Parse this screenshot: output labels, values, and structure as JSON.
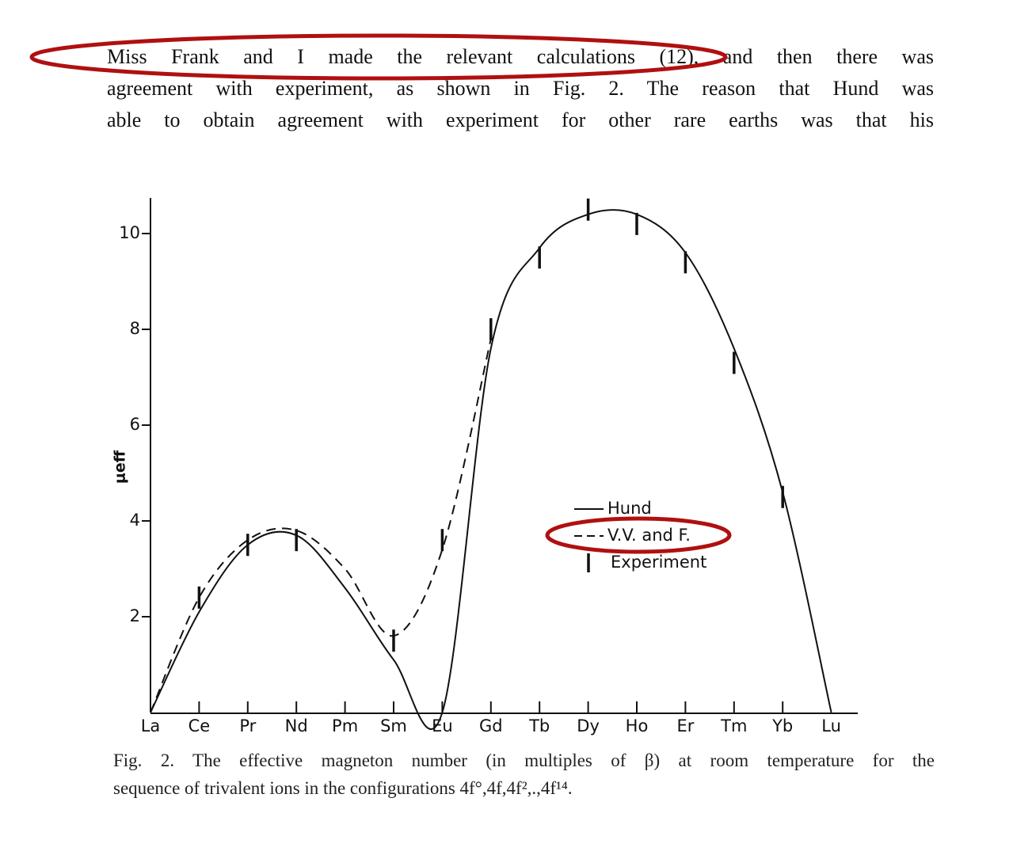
{
  "text": {
    "lines": [
      "Miss Frank and I made the relevant calculations (12), and then there was",
      "agreement with experiment, as shown in Fig. 2. The reason that Hund was",
      "able to obtain agreement with experiment for other rare earths was that his"
    ]
  },
  "chart_data": {
    "type": "line",
    "ylabel": "μeff",
    "categories": [
      "La",
      "Ce",
      "Pr",
      "Nd",
      "Pm",
      "Sm",
      "Eu",
      "Gd",
      "Tb",
      "Dy",
      "Ho",
      "Er",
      "Tm",
      "Yb",
      "Lu"
    ],
    "series": [
      {
        "name": "Hund",
        "color": "#111111",
        "style": "solid",
        "values": [
          0,
          2.1,
          3.5,
          3.7,
          2.6,
          1.1,
          0,
          7.6,
          9.7,
          10.4,
          10.4,
          9.6,
          7.6,
          4.6,
          0
        ]
      },
      {
        "name": "V.V. and F.",
        "color": "#111111",
        "style": "dashed",
        "values": [
          0,
          2.4,
          3.6,
          3.8,
          3.0,
          1.6,
          3.4,
          7.8,
          null,
          null,
          null,
          null,
          null,
          null,
          null
        ]
      },
      {
        "name": "Experiment",
        "color": "#111111",
        "style": "bar",
        "values": [
          null,
          2.4,
          3.5,
          3.6,
          null,
          1.5,
          3.6,
          8.0,
          9.5,
          10.5,
          10.2,
          9.4,
          7.3,
          4.5,
          null
        ]
      }
    ],
    "ylim": [
      0,
      10.7
    ],
    "yticks": [
      2,
      4,
      6,
      8,
      10
    ]
  },
  "caption": {
    "lines": [
      "Fig. 2. The effective magneton number (in multiples of β) at room temperature for the",
      "sequence of trivalent ions in the configurations 4f°,4f,4f²,.,4f¹⁴."
    ]
  }
}
